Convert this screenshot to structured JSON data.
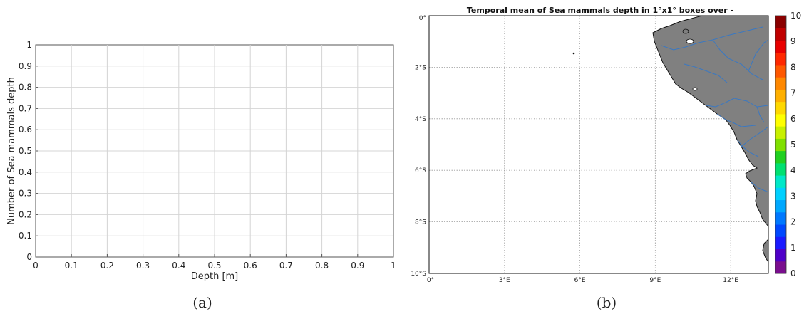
{
  "chart_data": [
    {
      "panel_label": "(a)",
      "type": "histogram",
      "xlabel": "Depth [m]",
      "ylabel": "Number of Sea mammals  depth",
      "xlim": [
        0,
        1
      ],
      "ylim": [
        0,
        1
      ],
      "x_ticks": [
        "0",
        "0.1",
        "0.2",
        "0.3",
        "0.4",
        "0.5",
        "0.6",
        "0.7",
        "0.8",
        "0.9",
        "1"
      ],
      "y_ticks": [
        "0",
        "0.1",
        "0.2",
        "0.3",
        "0.4",
        "0.5",
        "0.6",
        "0.7",
        "0.8",
        "0.9",
        "1"
      ],
      "grid": true,
      "values": []
    },
    {
      "panel_label": "(b)",
      "type": "heatmap",
      "title": "Temporal mean of Sea mammals  depth in 1°x1° boxes over -",
      "x_ticks": [
        "0°",
        "3°E",
        "6°E",
        "9°E",
        "12°E"
      ],
      "y_ticks": [
        "0°",
        "2°S",
        "4°S",
        "6°S",
        "8°S",
        "10°S"
      ],
      "xlim": [
        0,
        13.5
      ],
      "ylim": [
        -10,
        0
      ],
      "grid": true,
      "land_color": "#808080",
      "river_color": "#3a78c2",
      "colorbar": {
        "ticks": [
          "0",
          "1",
          "2",
          "3",
          "4",
          "5",
          "6",
          "7",
          "8",
          "9",
          "10"
        ],
        "range": [
          0,
          10
        ],
        "colors": [
          "#7a0e8e",
          "#4f00c8",
          "#1a1aff",
          "#0048ff",
          "#0078ff",
          "#00a8ff",
          "#00d0ff",
          "#00e8c8",
          "#00e070",
          "#20d020",
          "#80e000",
          "#c8f000",
          "#ffff00",
          "#ffd800",
          "#ffb000",
          "#ff8800",
          "#ff5800",
          "#ff2800",
          "#e80000",
          "#c00000",
          "#8a0000"
        ]
      },
      "values": []
    }
  ]
}
